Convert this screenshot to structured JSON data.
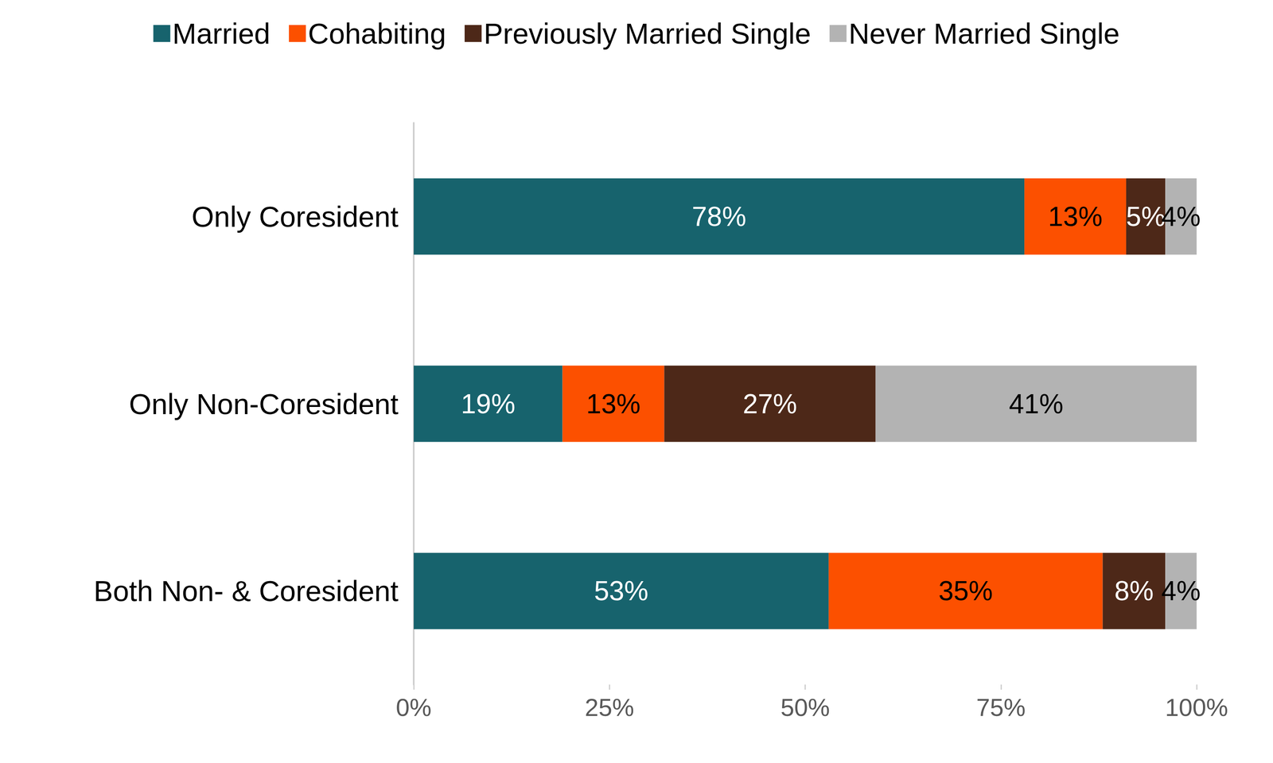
{
  "chart_data": {
    "type": "bar",
    "orientation": "horizontal",
    "stacked": true,
    "data_labels": true,
    "grid": false,
    "legend": "top",
    "categories": [
      "Only Coresident",
      "Only Non-Coresident",
      "Both Non- & Coresident"
    ],
    "series": [
      {
        "name": "Married",
        "color": "#17636d",
        "values": [
          78,
          19,
          53
        ],
        "value_labels": [
          "78%",
          "19%",
          "53%"
        ]
      },
      {
        "name": "Cohabiting",
        "color": "#fc5000",
        "values": [
          13,
          13,
          35
        ],
        "value_labels": [
          "13%",
          "13%",
          "35%"
        ]
      },
      {
        "name": "Previously Married Single",
        "color": "#4d2818",
        "values": [
          5,
          27,
          8
        ],
        "value_labels": [
          "5%",
          "27%",
          "8%"
        ]
      },
      {
        "name": "Never Married Single",
        "color": "#b3b3b3",
        "values": [
          4,
          41,
          4
        ],
        "value_labels": [
          "4%",
          "41%",
          "4%"
        ]
      }
    ],
    "xlim": [
      0,
      100
    ],
    "xticks": [
      {
        "value": 0,
        "label": "0%"
      },
      {
        "value": 25,
        "label": "25%"
      },
      {
        "value": 50,
        "label": "50%"
      },
      {
        "value": 75,
        "label": "75%"
      },
      {
        "value": 100,
        "label": "100%"
      }
    ]
  }
}
